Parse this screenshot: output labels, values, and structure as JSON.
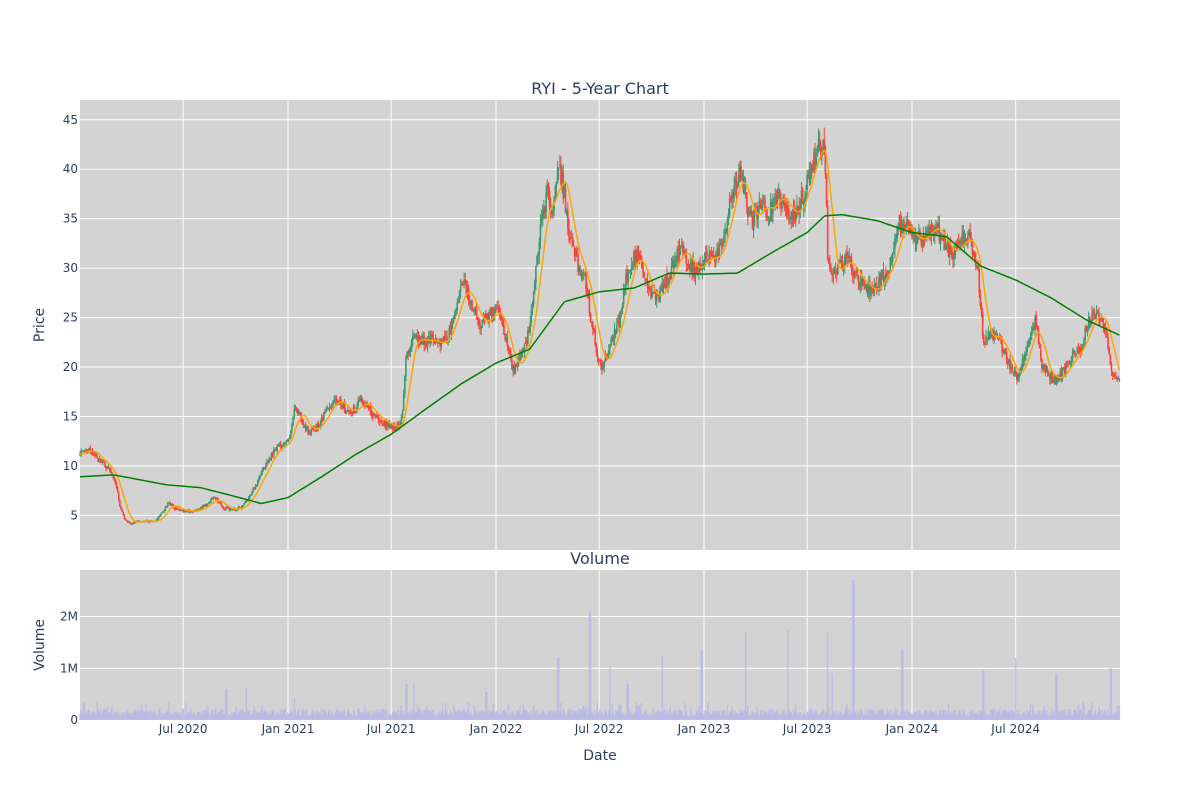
{
  "chart_data": [
    {
      "type": "candlestick",
      "title": "RYI - 5-Year Chart",
      "ylabel": "Price",
      "ylim": [
        1.5,
        47
      ],
      "y_ticks": [
        5,
        10,
        15,
        20,
        25,
        30,
        35,
        40,
        45
      ],
      "x_range": [
        "2020-01-02",
        "2024-12-31"
      ],
      "grid": true,
      "colors": {
        "background": "#d3d3d3",
        "grid": "#ffffff",
        "up": "#3d9970",
        "down": "#ff4136",
        "ma_short": "#ffa500",
        "ma_long": "#008000"
      },
      "price_path": [
        [
          "2020-01-02",
          11.2
        ],
        [
          "2020-01-15",
          11.8
        ],
        [
          "2020-02-01",
          10.8
        ],
        [
          "2020-02-20",
          9.8
        ],
        [
          "2020-03-05",
          8.2
        ],
        [
          "2020-03-12",
          6.0
        ],
        [
          "2020-03-20",
          4.6
        ],
        [
          "2020-04-01",
          4.2
        ],
        [
          "2020-04-20",
          4.5
        ],
        [
          "2020-05-10",
          4.3
        ],
        [
          "2020-05-25",
          5.2
        ],
        [
          "2020-06-05",
          6.3
        ],
        [
          "2020-06-20",
          5.6
        ],
        [
          "2020-07-05",
          5.4
        ],
        [
          "2020-07-25",
          5.5
        ],
        [
          "2020-08-10",
          6.1
        ],
        [
          "2020-08-25",
          6.8
        ],
        [
          "2020-09-10",
          5.7
        ],
        [
          "2020-10-01",
          5.6
        ],
        [
          "2020-10-15",
          6.0
        ],
        [
          "2020-10-30",
          7.4
        ],
        [
          "2020-11-10",
          8.6
        ],
        [
          "2020-11-25",
          10.4
        ],
        [
          "2020-12-10",
          11.8
        ],
        [
          "2020-12-28",
          12.3
        ],
        [
          "2021-01-05",
          13.0
        ],
        [
          "2021-01-12",
          16.2
        ],
        [
          "2021-01-25",
          14.6
        ],
        [
          "2021-02-08",
          13.4
        ],
        [
          "2021-02-25",
          14.3
        ],
        [
          "2021-03-10",
          15.6
        ],
        [
          "2021-03-22",
          16.8
        ],
        [
          "2021-04-05",
          16.2
        ],
        [
          "2021-04-20",
          15.3
        ],
        [
          "2021-05-10",
          16.6
        ],
        [
          "2021-05-25",
          15.6
        ],
        [
          "2021-06-10",
          14.6
        ],
        [
          "2021-06-25",
          14.2
        ],
        [
          "2021-07-10",
          13.8
        ],
        [
          "2021-07-20",
          14.6
        ],
        [
          "2021-07-28",
          21.5
        ],
        [
          "2021-08-10",
          23.0
        ],
        [
          "2021-08-25",
          22.6
        ],
        [
          "2021-09-10",
          22.8
        ],
        [
          "2021-09-25",
          22.2
        ],
        [
          "2021-10-10",
          23.4
        ],
        [
          "2021-10-25",
          26.6
        ],
        [
          "2021-11-05",
          28.4
        ],
        [
          "2021-11-20",
          26.2
        ],
        [
          "2021-12-05",
          24.2
        ],
        [
          "2021-12-20",
          25.2
        ],
        [
          "2022-01-05",
          25.8
        ],
        [
          "2022-01-20",
          22.2
        ],
        [
          "2022-02-01",
          19.6
        ],
        [
          "2022-02-12",
          20.8
        ],
        [
          "2022-02-25",
          22.8
        ],
        [
          "2022-03-10",
          28.4
        ],
        [
          "2022-03-20",
          34.4
        ],
        [
          "2022-04-01",
          37.8
        ],
        [
          "2022-04-10",
          35.2
        ],
        [
          "2022-04-20",
          41.2
        ],
        [
          "2022-05-01",
          37.2
        ],
        [
          "2022-05-10",
          33.6
        ],
        [
          "2022-05-25",
          30.2
        ],
        [
          "2022-06-05",
          29.4
        ],
        [
          "2022-06-15",
          25.4
        ],
        [
          "2022-06-25",
          22.2
        ],
        [
          "2022-07-05",
          19.8
        ],
        [
          "2022-07-20",
          22.2
        ],
        [
          "2022-08-05",
          24.6
        ],
        [
          "2022-08-20",
          29.6
        ],
        [
          "2022-09-05",
          31.6
        ],
        [
          "2022-09-20",
          28.6
        ],
        [
          "2022-10-05",
          26.8
        ],
        [
          "2022-10-20",
          27.8
        ],
        [
          "2022-11-05",
          29.8
        ],
        [
          "2022-11-20",
          32.2
        ],
        [
          "2022-12-05",
          30.6
        ],
        [
          "2022-12-20",
          29.6
        ],
        [
          "2023-01-05",
          31.4
        ],
        [
          "2023-01-20",
          30.6
        ],
        [
          "2023-02-05",
          33.4
        ],
        [
          "2023-02-20",
          37.8
        ],
        [
          "2023-03-05",
          39.6
        ],
        [
          "2023-03-15",
          37.2
        ],
        [
          "2023-03-25",
          34.4
        ],
        [
          "2023-04-10",
          36.6
        ],
        [
          "2023-04-25",
          35.6
        ],
        [
          "2023-05-10",
          37.6
        ],
        [
          "2023-05-25",
          36.2
        ],
        [
          "2023-06-10",
          35.2
        ],
        [
          "2023-06-25",
          37.6
        ],
        [
          "2023-07-10",
          40.6
        ],
        [
          "2023-07-20",
          42.6
        ],
        [
          "2023-08-01",
          41.8
        ],
        [
          "2023-08-06",
          31.6
        ],
        [
          "2023-08-12",
          29.6
        ],
        [
          "2023-08-25",
          30.0
        ],
        [
          "2023-09-10",
          31.0
        ],
        [
          "2023-09-25",
          29.0
        ],
        [
          "2023-10-10",
          28.4
        ],
        [
          "2023-10-25",
          27.4
        ],
        [
          "2023-11-10",
          29.2
        ],
        [
          "2023-11-25",
          30.4
        ],
        [
          "2023-12-10",
          34.6
        ],
        [
          "2023-12-25",
          34.0
        ],
        [
          "2024-01-10",
          32.6
        ],
        [
          "2024-01-25",
          33.4
        ],
        [
          "2024-02-10",
          34.4
        ],
        [
          "2024-02-25",
          32.6
        ],
        [
          "2024-03-10",
          31.4
        ],
        [
          "2024-03-25",
          32.6
        ],
        [
          "2024-04-10",
          33.2
        ],
        [
          "2024-04-25",
          30.0
        ],
        [
          "2024-05-05",
          22.8
        ],
        [
          "2024-05-20",
          23.4
        ],
        [
          "2024-06-05",
          22.4
        ],
        [
          "2024-06-20",
          20.2
        ],
        [
          "2024-07-05",
          18.8
        ],
        [
          "2024-07-20",
          22.2
        ],
        [
          "2024-08-05",
          24.8
        ],
        [
          "2024-08-15",
          20.2
        ],
        [
          "2024-08-25",
          19.4
        ],
        [
          "2024-09-10",
          18.6
        ],
        [
          "2024-09-25",
          19.8
        ],
        [
          "2024-10-10",
          21.2
        ],
        [
          "2024-10-25",
          22.2
        ],
        [
          "2024-11-05",
          24.6
        ],
        [
          "2024-11-20",
          25.4
        ],
        [
          "2024-12-05",
          24.2
        ],
        [
          "2024-12-15",
          20.0
        ],
        [
          "2024-12-31",
          18.2
        ]
      ],
      "ma_long_path": [
        [
          "2020-01-02",
          8.9
        ],
        [
          "2020-03-01",
          9.1
        ],
        [
          "2020-06-01",
          8.1
        ],
        [
          "2020-08-01",
          7.8
        ],
        [
          "2020-10-01",
          6.9
        ],
        [
          "2020-11-15",
          6.2
        ],
        [
          "2021-01-01",
          6.8
        ],
        [
          "2021-03-01",
          8.9
        ],
        [
          "2021-05-01",
          11.2
        ],
        [
          "2021-07-01",
          13.2
        ],
        [
          "2021-09-01",
          15.8
        ],
        [
          "2021-11-01",
          18.3
        ],
        [
          "2022-01-01",
          20.4
        ],
        [
          "2022-03-01",
          21.8
        ],
        [
          "2022-05-01",
          26.6
        ],
        [
          "2022-07-01",
          27.6
        ],
        [
          "2022-09-01",
          28.0
        ],
        [
          "2022-11-01",
          29.5
        ],
        [
          "2023-01-01",
          29.4
        ],
        [
          "2023-03-01",
          29.5
        ],
        [
          "2023-05-01",
          31.6
        ],
        [
          "2023-07-01",
          33.6
        ],
        [
          "2023-08-01",
          35.3
        ],
        [
          "2023-09-01",
          35.4
        ],
        [
          "2023-11-01",
          34.8
        ],
        [
          "2024-01-01",
          33.6
        ],
        [
          "2024-03-01",
          33.2
        ],
        [
          "2024-05-01",
          30.2
        ],
        [
          "2024-07-01",
          28.8
        ],
        [
          "2024-09-01",
          27.0
        ],
        [
          "2024-11-01",
          24.8
        ],
        [
          "2024-12-31",
          23.2
        ]
      ],
      "legend": "none"
    },
    {
      "type": "bar",
      "title": "Volume",
      "xlabel": "Date",
      "ylabel": "Volume",
      "ylim": [
        0,
        2900000
      ],
      "y_ticks": [
        0,
        1000000,
        2000000
      ],
      "y_tick_labels": [
        "0",
        "1M",
        "2M"
      ],
      "x_ticks": [
        "2020-07-01",
        "2021-01-01",
        "2021-07-01",
        "2022-01-01",
        "2022-07-01",
        "2023-01-01",
        "2023-07-01",
        "2024-01-01",
        "2024-07-01"
      ],
      "x_tick_labels": [
        "Jul 2020",
        "Jan 2021",
        "Jul 2021",
        "Jan 2022",
        "Jul 2022",
        "Jan 2023",
        "Jul 2023",
        "Jan 2024",
        "Jul 2024"
      ],
      "grid": true,
      "colors": {
        "bar": "#b6b9e6"
      },
      "volume_spikes": [
        [
          "2020-09-15",
          600000
        ],
        [
          "2020-10-20",
          630000
        ],
        [
          "2021-01-12",
          430000
        ],
        [
          "2021-07-28",
          700000
        ],
        [
          "2021-08-10",
          720000
        ],
        [
          "2021-12-15",
          540000
        ],
        [
          "2022-04-20",
          1200000
        ],
        [
          "2022-06-15",
          2100000
        ],
        [
          "2022-07-20",
          1050000
        ],
        [
          "2022-08-20",
          700000
        ],
        [
          "2022-10-20",
          1250000
        ],
        [
          "2022-12-28",
          1350000
        ],
        [
          "2023-03-15",
          1700000
        ],
        [
          "2023-05-28",
          1750000
        ],
        [
          "2023-08-06",
          1700000
        ],
        [
          "2023-08-14",
          900000
        ],
        [
          "2023-09-20",
          2700000
        ],
        [
          "2023-12-15",
          1350000
        ],
        [
          "2024-05-05",
          950000
        ],
        [
          "2024-07-01",
          1200000
        ],
        [
          "2024-09-10",
          900000
        ],
        [
          "2024-12-15",
          1000000
        ]
      ],
      "typical_volume": [
        80000,
        350000
      ],
      "legend": "none"
    }
  ]
}
